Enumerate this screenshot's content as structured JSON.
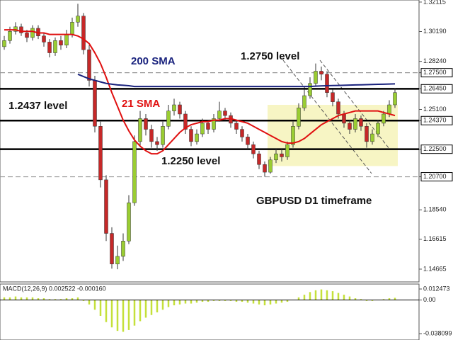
{
  "chart_data": {
    "type": "candlestick",
    "up_color": "#9acd32",
    "down_color": "#c62828",
    "wick_color": "#333333",
    "open": [
      1.292,
      1.296,
      1.302,
      1.305,
      1.301,
      1.298,
      1.304,
      1.299,
      1.295,
      1.288,
      1.296,
      1.293,
      1.3,
      1.308,
      1.312,
      1.29,
      1.27,
      1.24,
      1.205,
      1.17,
      1.15,
      1.155,
      1.165,
      1.19,
      1.23,
      1.245,
      1.238,
      1.23,
      1.228,
      1.24,
      1.25,
      1.254,
      1.248,
      1.238,
      1.23,
      1.235,
      1.242,
      1.238,
      1.245,
      1.25,
      1.247,
      1.242,
      1.238,
      1.233,
      1.228,
      1.222,
      1.215,
      1.21,
      1.218,
      1.222,
      1.22,
      1.228,
      1.24,
      1.252,
      1.26,
      1.268,
      1.276,
      1.274,
      1.262,
      1.256,
      1.248,
      1.242,
      1.238,
      1.245,
      1.24,
      1.23,
      1.235,
      1.242,
      1.248,
      1.254
    ],
    "high": [
      1.299,
      1.305,
      1.308,
      1.307,
      1.303,
      1.306,
      1.306,
      1.301,
      1.297,
      1.298,
      1.299,
      1.303,
      1.311,
      1.32,
      1.314,
      1.293,
      1.273,
      1.243,
      1.208,
      1.174,
      1.162,
      1.17,
      1.195,
      1.234,
      1.25,
      1.248,
      1.241,
      1.233,
      1.243,
      1.254,
      1.258,
      1.256,
      1.25,
      1.24,
      1.238,
      1.245,
      1.244,
      1.248,
      1.256,
      1.252,
      1.249,
      1.244,
      1.24,
      1.235,
      1.23,
      1.224,
      1.217,
      1.22,
      1.225,
      1.225,
      1.23,
      1.243,
      1.255,
      1.264,
      1.272,
      1.281,
      1.279,
      1.276,
      1.264,
      1.258,
      1.25,
      1.244,
      1.248,
      1.247,
      1.242,
      1.238,
      1.244,
      1.25,
      1.257,
      1.265
    ],
    "low": [
      1.29,
      1.294,
      1.3,
      1.299,
      1.295,
      1.296,
      1.297,
      1.292,
      1.285,
      1.286,
      1.29,
      1.291,
      1.298,
      1.305,
      1.287,
      1.266,
      1.236,
      1.2,
      1.165,
      1.147,
      1.1466,
      1.152,
      1.163,
      1.188,
      1.227,
      1.234,
      1.226,
      1.224,
      1.226,
      1.238,
      1.247,
      1.245,
      1.235,
      1.227,
      1.228,
      1.233,
      1.235,
      1.236,
      1.243,
      1.244,
      1.239,
      1.235,
      1.23,
      1.225,
      1.219,
      1.212,
      1.207,
      1.209,
      1.216,
      1.217,
      1.218,
      1.226,
      1.238,
      1.25,
      1.258,
      1.266,
      1.27,
      1.259,
      1.253,
      1.245,
      1.239,
      1.235,
      1.236,
      1.237,
      1.226,
      1.228,
      1.233,
      1.24,
      1.246,
      1.252
    ],
    "close": [
      1.296,
      1.302,
      1.305,
      1.301,
      1.298,
      1.304,
      1.299,
      1.295,
      1.288,
      1.296,
      1.293,
      1.3,
      1.308,
      1.312,
      1.29,
      1.27,
      1.24,
      1.205,
      1.17,
      1.15,
      1.155,
      1.165,
      1.19,
      1.23,
      1.245,
      1.238,
      1.23,
      1.228,
      1.24,
      1.25,
      1.254,
      1.248,
      1.238,
      1.23,
      1.235,
      1.242,
      1.238,
      1.245,
      1.25,
      1.247,
      1.242,
      1.238,
      1.233,
      1.228,
      1.222,
      1.215,
      1.21,
      1.218,
      1.222,
      1.22,
      1.228,
      1.24,
      1.252,
      1.26,
      1.268,
      1.276,
      1.274,
      1.262,
      1.256,
      1.248,
      1.242,
      1.238,
      1.245,
      1.24,
      1.23,
      1.235,
      1.242,
      1.248,
      1.254,
      1.262
    ],
    "series": [
      {
        "color": "#e01010",
        "values": [
          1.303,
          1.303,
          1.303,
          1.302,
          1.302,
          1.302,
          1.301,
          1.301,
          1.3,
          1.3,
          1.3,
          1.3,
          1.3,
          1.299,
          1.297,
          1.294,
          1.288,
          1.281,
          1.272,
          1.262,
          1.253,
          1.244,
          1.237,
          1.231,
          1.227,
          1.224,
          1.222,
          1.222,
          1.224,
          1.228,
          1.232,
          1.236,
          1.239,
          1.241,
          1.242,
          1.243,
          1.243,
          1.244,
          1.244,
          1.245,
          1.245,
          1.244,
          1.243,
          1.242,
          1.24,
          1.238,
          1.236,
          1.234,
          1.232,
          1.23,
          1.229,
          1.229,
          1.23,
          1.232,
          1.235,
          1.238,
          1.241,
          1.243,
          1.245,
          1.247,
          1.248,
          1.249,
          1.25,
          1.25,
          1.25,
          1.25,
          1.25,
          1.249,
          1.248,
          1.247
        ]
      },
      {
        "color": "#1a237e",
        "values": [
          null,
          null,
          null,
          null,
          null,
          null,
          null,
          null,
          null,
          null,
          null,
          null,
          null,
          1.274,
          1.2725,
          1.271,
          1.27,
          1.269,
          1.268,
          1.2675,
          1.267,
          1.2668,
          1.2665,
          1.266,
          1.266,
          1.266,
          1.266,
          1.266,
          1.266,
          1.266,
          1.266,
          1.266,
          1.266,
          1.266,
          1.266,
          1.266,
          1.266,
          1.266,
          1.266,
          1.266,
          1.266,
          1.266,
          1.266,
          1.266,
          1.266,
          1.266,
          1.266,
          1.266,
          1.266,
          1.266,
          1.266,
          1.266,
          1.266,
          1.266,
          1.266,
          1.2662,
          1.2664,
          1.2665,
          1.2666,
          1.2667,
          1.2668,
          1.2669,
          1.267,
          1.2671,
          1.2672,
          1.2673,
          1.2674,
          1.2675,
          1.2676,
          1.2677
        ]
      }
    ],
    "ylim": [
      1.1383,
      1.3225
    ],
    "yticks": [
      {
        "value": 1.32115,
        "label": "1.32115"
      },
      {
        "value": 1.3019,
        "label": "1.30190"
      },
      {
        "value": 1.2824,
        "label": "1.28240"
      },
      {
        "value": 1.275,
        "label": "1.27500"
      },
      {
        "value": 1.2645,
        "label": "1.26450"
      },
      {
        "value": 1.251,
        "label": "1.25100"
      },
      {
        "value": 1.2437,
        "label": "1.24370"
      },
      {
        "value": 1.225,
        "label": "1.22500"
      },
      {
        "value": 1.207,
        "label": "1.20700"
      },
      {
        "value": 1.1854,
        "label": "1.18540"
      },
      {
        "value": 1.16615,
        "label": "1.16615"
      },
      {
        "value": 1.14665,
        "label": "1.14665"
      }
    ],
    "levels": [
      {
        "value": 1.275,
        "style": "dashed"
      },
      {
        "value": 1.2645,
        "style": "solid"
      },
      {
        "value": 1.2437,
        "style": "solid"
      },
      {
        "value": 1.225,
        "style": "solid"
      },
      {
        "value": 1.207,
        "style": "dashed"
      }
    ],
    "zone": {
      "ylim": [
        1.214,
        1.254
      ],
      "color": "#f7f5c4"
    },
    "annotations": [
      {
        "text": "200 SMA",
        "color": "#1a237e"
      },
      {
        "text": "21 SMA",
        "color": "#e01010"
      },
      {
        "text": "1.2750 level",
        "color": "#111111"
      },
      {
        "text": "1.2437 level",
        "color": "#111111"
      },
      {
        "text": "1.2250 level",
        "color": "#111111"
      },
      {
        "text": "GBPUSD D1 timeframe",
        "color": "#111111"
      }
    ],
    "macd": {
      "label": "MACD(12,26,9) 0.002522 -0.000160",
      "color": "#c5e03a",
      "values": [
        0.003,
        0.003,
        0.004,
        0.003,
        0.003,
        0.003,
        0.002,
        0.002,
        0.001,
        0.001,
        0.001,
        0.002,
        0.002,
        0.003,
        -0.001,
        -0.005,
        -0.011,
        -0.018,
        -0.025,
        -0.031,
        -0.035,
        -0.036,
        -0.034,
        -0.029,
        -0.024,
        -0.02,
        -0.017,
        -0.014,
        -0.011,
        -0.008,
        -0.006,
        -0.005,
        -0.004,
        -0.004,
        -0.003,
        -0.002,
        -0.002,
        -0.001,
        -0.001,
        -0.001,
        -0.001,
        -0.002,
        -0.002,
        -0.003,
        -0.004,
        -0.005,
        -0.006,
        -0.005,
        -0.004,
        -0.003,
        -0.002,
        0.0,
        0.003,
        0.006,
        0.009,
        0.011,
        0.012,
        0.011,
        0.01,
        0.008,
        0.006,
        0.004,
        0.002,
        0.001,
        -0.001,
        -0.001,
        0.0,
        0.001,
        0.002,
        0.0025
      ],
      "y2lim": [
        -0.0453,
        0.0181
      ],
      "y2ticks": [
        0.012473,
        {
          "value": 0,
          "label": "0.00"
        },
        -0.038099
      ]
    }
  }
}
